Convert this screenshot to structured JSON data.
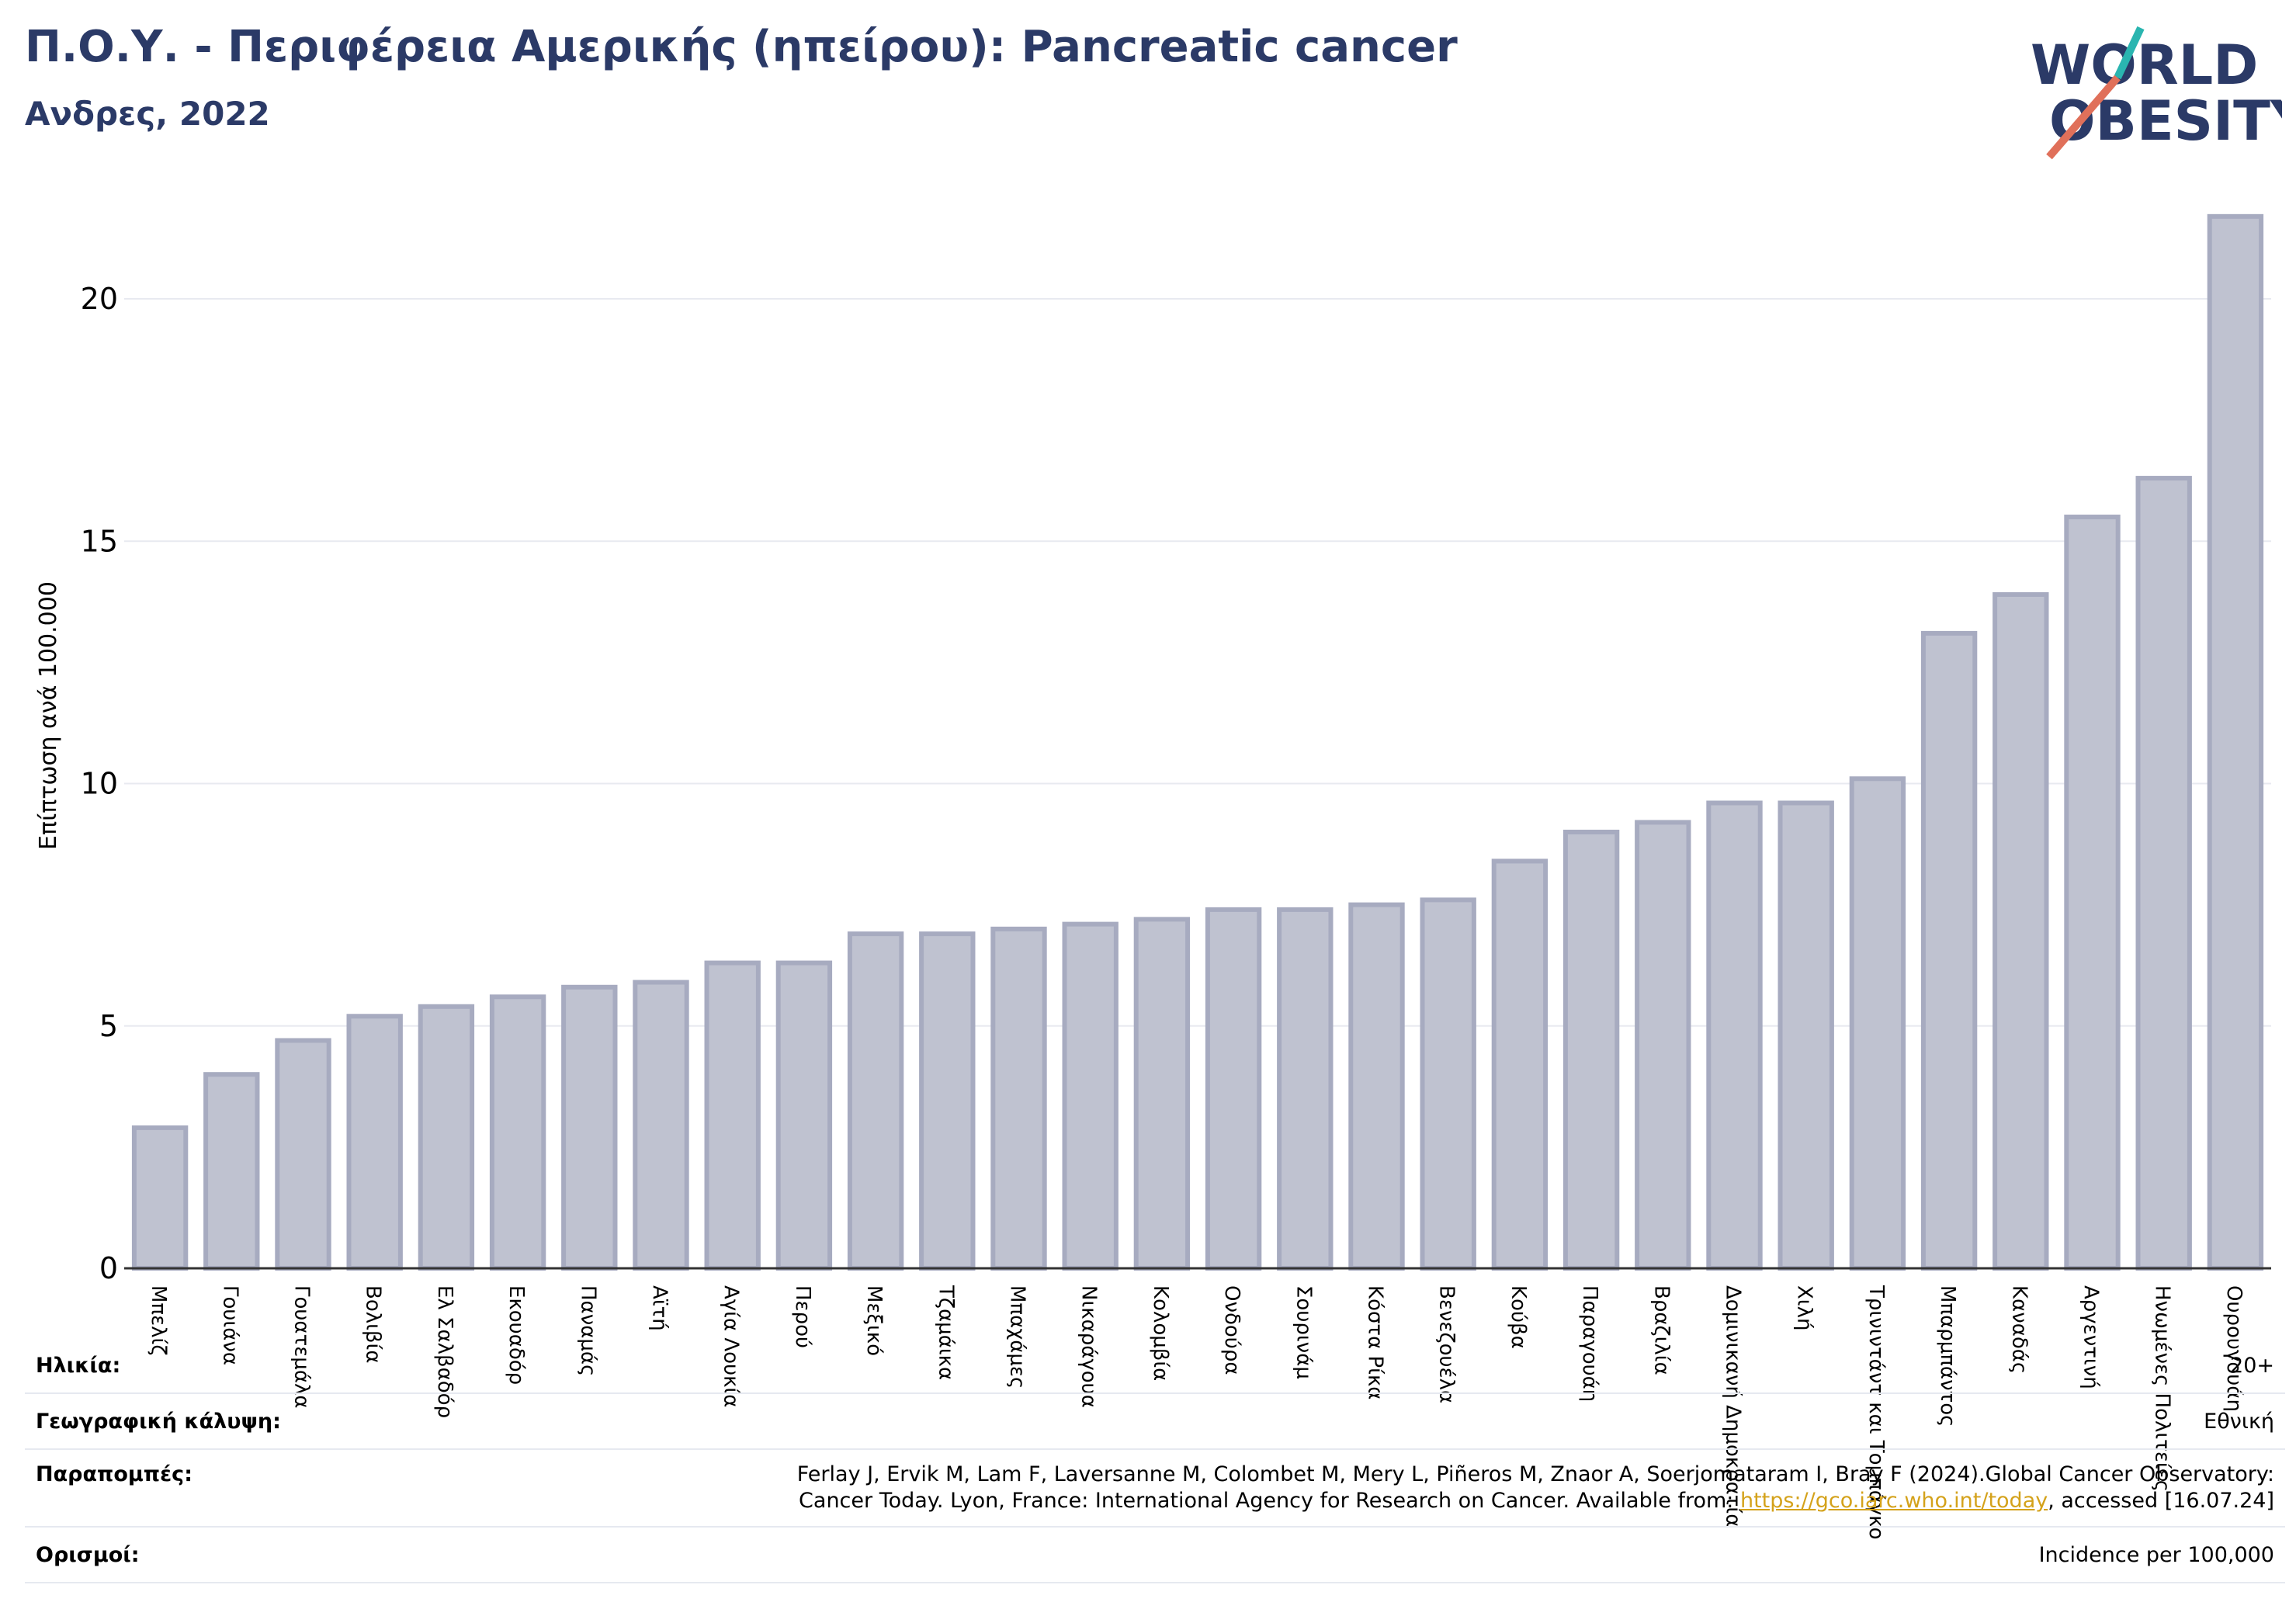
{
  "header": {
    "title": "Π.Ο.Υ. - Περιφέρεια Αμερικής (ηπείρου): Pancreatic cancer",
    "subtitle": "Ανδρες, 2022"
  },
  "logo": {
    "line1": "WORLD",
    "line2": "OBESITY",
    "accent_colors": [
      "#2ab5b0",
      "#e0705a"
    ],
    "text_color": "#2b3a67"
  },
  "chart_data": {
    "type": "bar",
    "ylabel": "Επίπτωση ανά 100.000",
    "xlabel": "",
    "ylim": [
      0,
      22
    ],
    "yticks": [
      0,
      5,
      10,
      15,
      20
    ],
    "grid": true,
    "bar_color": "#bfc2d0",
    "bar_edge_color": "#a7abc0",
    "categories": [
      "Μπελίζ",
      "Γουιάνα",
      "Γουατεμάλα",
      "Βολιβία",
      "Ελ Σαλβαδόρ",
      "Εκουαδόρ",
      "Παναμάς",
      "Αϊτή",
      "Αγία Λουκία",
      "Περού",
      "Μεξικό",
      "Τζαμάικα",
      "Μπαχάμες",
      "Νικαράγουα",
      "Κολομβία",
      "Ονδούρα",
      "Σουρινάμ",
      "Κόστα Ρίκα",
      "Βενεζουέλα",
      "Κούβα",
      "Παραγουάη",
      "Βραζιλία",
      "Δομινικανή Δημοκρατία",
      "Χιλή",
      "Τρινιντάντ και Τομπάγκο",
      "Μπαρμπάντος",
      "Καναδάς",
      "Αργεντινή",
      "Ηνωμένες Πολιτείες",
      "Ουρουγουάη"
    ],
    "values": [
      2.9,
      4.0,
      4.7,
      5.2,
      5.4,
      5.6,
      5.8,
      5.9,
      6.3,
      6.3,
      6.9,
      6.9,
      7.0,
      7.1,
      7.2,
      7.4,
      7.4,
      7.5,
      7.6,
      8.4,
      9.0,
      9.2,
      9.6,
      9.6,
      10.1,
      13.1,
      13.9,
      15.5,
      16.3,
      21.7
    ]
  },
  "info": {
    "age_label": "Ηλικία:",
    "age_value": "20+",
    "coverage_label": "Γεωγραφική κάλυψη:",
    "coverage_value": "Εθνική",
    "refs_label": "Παραπομπές:",
    "refs_line1": "Ferlay J, Ervik M, Lam F, Laversanne M, Colombet M, Mery L, Piñeros M, Znaor A, Soerjomataram I, Bray F (2024).Global Cancer Observatory:",
    "refs_line2_pre": "Cancer Today. Lyon, France: International Agency for Research on Cancer. Available from: ",
    "refs_link": "https://gco.iarc.who.int/today",
    "refs_line2_post": ", accessed [16.07.24]",
    "def_label": "Ορισμοί:",
    "def_value": "Incidence per 100,000"
  }
}
